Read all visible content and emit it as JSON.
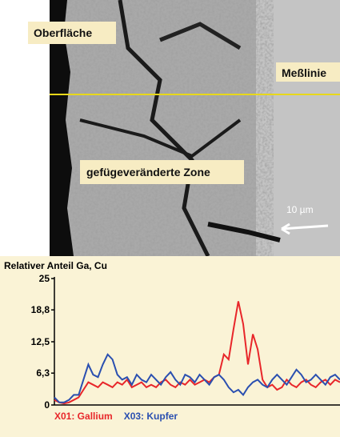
{
  "image": {
    "labels": [
      "Oberfläche",
      "Meßlinie",
      "gefügeveränderte Zone"
    ],
    "scale": "10 µm"
  },
  "chart_data": {
    "type": "line",
    "title": "Relativer Anteil Ga, Cu",
    "ylim": [
      0,
      25
    ],
    "yticks": [
      0,
      {
        "value": 6.3,
        "label": "6,3"
      },
      {
        "value": 12.5,
        "label": "12,5"
      },
      {
        "value": 18.8,
        "label": "18,8"
      },
      25
    ],
    "series": [
      {
        "name": "X01: Gallium",
        "color": "#e8262a",
        "values": [
          1,
          0.5,
          0.3,
          0.5,
          1,
          1.5,
          3,
          4.5,
          4,
          3.5,
          4.5,
          4,
          3.5,
          4.5,
          4,
          5,
          3.5,
          4,
          4.5,
          3.5,
          4,
          3.5,
          4.5,
          5,
          4,
          3.5,
          4.5,
          4,
          5,
          4,
          4.5,
          5,
          4.5,
          5.5,
          6,
          10,
          9,
          15,
          20.5,
          16,
          8,
          14,
          11,
          5,
          3.5,
          4,
          3,
          3.5,
          5,
          4,
          3.5,
          4.5,
          5,
          4,
          3.5,
          4.5,
          5,
          4,
          5,
          4.5
        ]
      },
      {
        "name": "X03: Kupfer",
        "color": "#2a4fb0",
        "values": [
          1.5,
          0.5,
          0.5,
          1,
          2,
          2,
          5,
          8,
          6,
          5.5,
          8,
          10,
          9,
          6,
          5,
          5.5,
          4,
          6,
          5,
          4.5,
          6,
          5,
          4,
          5.5,
          6.5,
          5,
          4,
          6,
          5.5,
          4.5,
          6,
          5,
          4,
          5.5,
          6,
          5,
          3.5,
          2.5,
          3,
          2,
          3.5,
          4.5,
          5,
          4,
          3.5,
          5,
          6,
          5,
          4,
          5.5,
          7,
          6,
          4.5,
          5,
          6,
          5,
          4,
          5.5,
          6,
          5
        ]
      }
    ]
  }
}
